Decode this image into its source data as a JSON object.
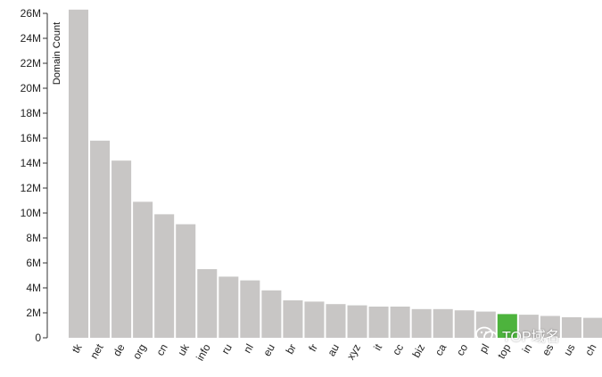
{
  "chart_data": {
    "type": "bar",
    "title": "",
    "xlabel": "",
    "ylabel": "Domain Count",
    "ylim": [
      0,
      26000000
    ],
    "yticks": [
      0,
      2000000,
      4000000,
      6000000,
      8000000,
      10000000,
      12000000,
      14000000,
      16000000,
      18000000,
      20000000,
      22000000,
      24000000,
      26000000
    ],
    "ytick_labels": [
      "0",
      "2M",
      "4M",
      "6M",
      "8M",
      "10M",
      "12M",
      "14M",
      "16M",
      "18M",
      "20M",
      "22M",
      "24M",
      "26M"
    ],
    "categories": [
      "tk",
      "net",
      "de",
      "org",
      "cn",
      "uk",
      "info",
      "ru",
      "nl",
      "eu",
      "br",
      "fr",
      "au",
      "xyz",
      "it",
      "cc",
      "biz",
      "ca",
      "co",
      "pl",
      "top",
      "in",
      "es",
      "us",
      "ch"
    ],
    "values": [
      26300000,
      15800000,
      14200000,
      10900000,
      9900000,
      9100000,
      5500000,
      4900000,
      4600000,
      3800000,
      3000000,
      2900000,
      2700000,
      2600000,
      2500000,
      2500000,
      2300000,
      2300000,
      2200000,
      2100000,
      1900000,
      1850000,
      1750000,
      1650000,
      1600000
    ],
    "highlight": "top",
    "grid": false,
    "colors": {
      "bar": "#c8c6c5",
      "highlight": "#4db33d",
      "axis": "#333333"
    }
  },
  "watermark": {
    "text": "TOP域名",
    "icon": "wechat-icon"
  }
}
